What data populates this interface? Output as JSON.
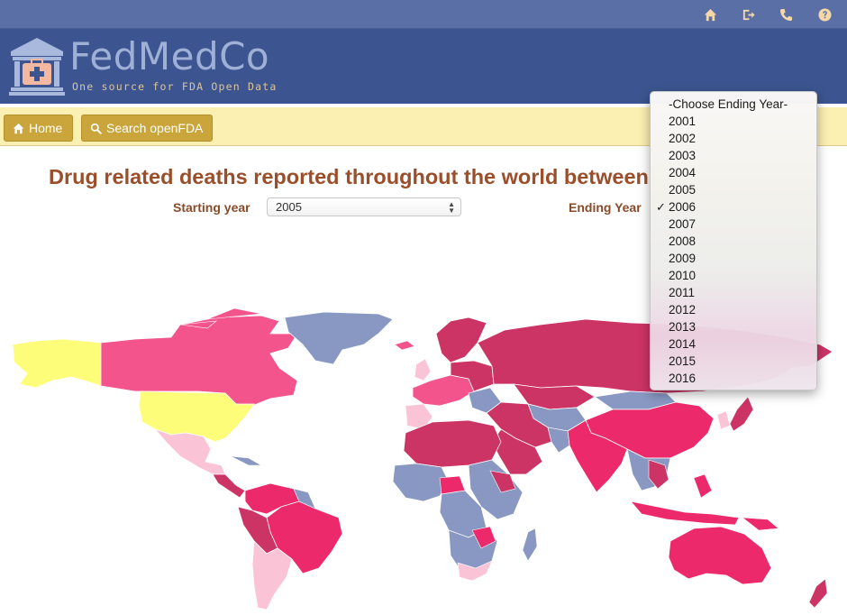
{
  "topbar": {
    "icons": [
      "home-icon",
      "sign-out-icon",
      "phone-icon",
      "question-icon"
    ]
  },
  "brand": {
    "name": "FedMedCo",
    "tagline": "One source for FDA Open Data"
  },
  "nav": {
    "home_label": "Home",
    "search_label": "Search openFDA"
  },
  "page": {
    "title": "Drug related deaths reported throughout the world between",
    "starting_year_label": "Starting year",
    "starting_year_value": "2005",
    "ending_year_label": "Ending Year"
  },
  "ending_year_dropdown": {
    "header": "-Choose Ending Year-",
    "selected": "2006",
    "options": [
      "2001",
      "2002",
      "2003",
      "2004",
      "2005",
      "2006",
      "2007",
      "2008",
      "2009",
      "2010",
      "2011",
      "2012",
      "2013",
      "2014",
      "2015",
      "2016"
    ]
  },
  "map_legend_colors": {
    "very_high": "#cc3466",
    "high": "#ec2a6b",
    "medium": "#f4548c",
    "low": "#fbc4d6",
    "very_low": "#fdfd79",
    "no_data": "#8898c3"
  },
  "colors": {
    "topbar": "#5a6fa6",
    "brandbar": "#3c5590",
    "navbar": "#fbefb2",
    "nav_button": "#c9a53c",
    "title": "#9b4e2a"
  }
}
